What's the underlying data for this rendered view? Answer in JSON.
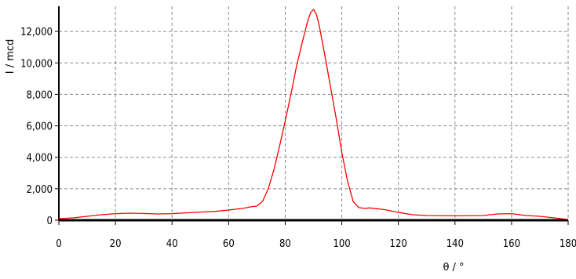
{
  "chart_data": {
    "type": "line",
    "title": "",
    "xlabel": "θ / °",
    "ylabel": "I / mcd",
    "xlim": [
      0,
      180
    ],
    "ylim": [
      0,
      13600
    ],
    "x_ticks": [
      0,
      20,
      40,
      60,
      80,
      100,
      120,
      140,
      160,
      180
    ],
    "y_ticks": [
      0,
      2000,
      4000,
      6000,
      8000,
      10000,
      12000
    ],
    "y_tick_labels": [
      "0",
      "2,000",
      "4,000",
      "6,000",
      "8,000",
      "10,000",
      "12,000"
    ],
    "grid": true,
    "series": [
      {
        "color": "#ff0000",
        "x": [
          0,
          5,
          10,
          15,
          20,
          25,
          30,
          35,
          40,
          45,
          50,
          55,
          60,
          65,
          68,
          70,
          72,
          74,
          76,
          78,
          80,
          82,
          84,
          86,
          88,
          89,
          90,
          91,
          92,
          94,
          96,
          98,
          100,
          102,
          104,
          106,
          108,
          110,
          115,
          120,
          125,
          130,
          140,
          150,
          155,
          160,
          165,
          170,
          175,
          180
        ],
        "y": [
          100,
          150,
          250,
          350,
          420,
          450,
          430,
          400,
          420,
          470,
          520,
          560,
          650,
          750,
          850,
          900,
          1200,
          2000,
          3200,
          4700,
          6300,
          8000,
          9800,
          11300,
          12700,
          13200,
          13400,
          13100,
          12400,
          10500,
          8500,
          6500,
          4300,
          2500,
          1200,
          800,
          750,
          780,
          680,
          500,
          350,
          300,
          280,
          300,
          400,
          420,
          300,
          250,
          150,
          50
        ]
      }
    ]
  }
}
